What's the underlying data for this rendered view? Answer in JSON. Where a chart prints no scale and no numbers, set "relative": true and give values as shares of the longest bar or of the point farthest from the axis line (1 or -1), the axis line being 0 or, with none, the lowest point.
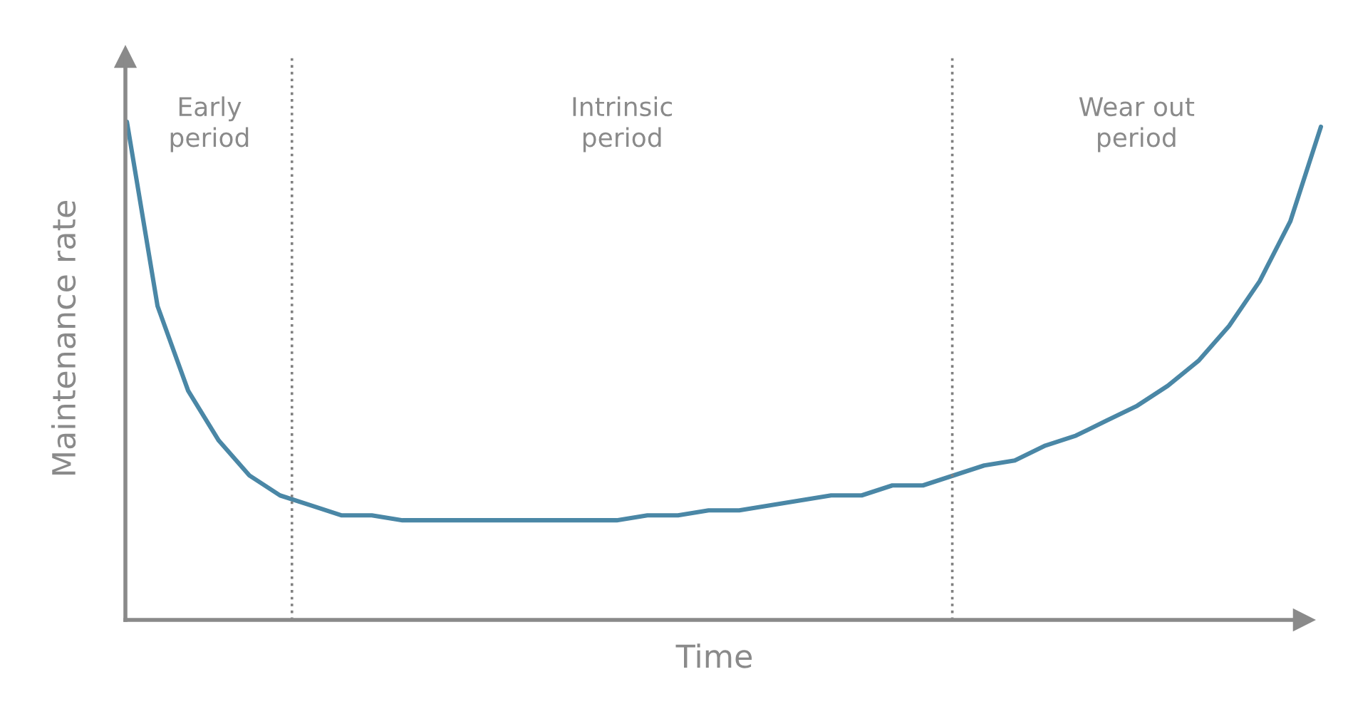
{
  "chart_data": {
    "type": "line",
    "relative": true,
    "xlabel": "Time",
    "ylabel": "Maintenance rate",
    "categories": [
      null,
      null,
      null,
      null,
      null,
      null,
      null,
      null,
      null,
      null,
      null,
      null,
      null,
      null,
      null,
      null,
      null,
      null,
      null,
      null,
      null,
      null,
      null,
      null,
      null,
      null,
      null,
      null,
      null,
      null,
      null,
      null,
      null,
      null,
      null,
      null,
      null,
      null,
      null,
      null
    ],
    "series": [
      {
        "color": "#4a87a6",
        "values": [
          1.0,
          0.63,
          0.46,
          0.36,
          0.29,
          0.25,
          0.23,
          0.21,
          0.21,
          0.2,
          0.2,
          0.2,
          0.2,
          0.2,
          0.2,
          0.2,
          0.2,
          0.21,
          0.21,
          0.22,
          0.22,
          0.23,
          0.24,
          0.25,
          0.25,
          0.27,
          0.27,
          0.29,
          0.31,
          0.32,
          0.35,
          0.37,
          0.4,
          0.43,
          0.47,
          0.52,
          0.59,
          0.68,
          0.8,
          0.99
        ]
      }
    ],
    "annotations": [
      "Early\nperiod",
      "Intrinsic\nperiod",
      "Wear out\nperiod"
    ],
    "legend": false,
    "marker": "none",
    "line_style": "solid"
  }
}
